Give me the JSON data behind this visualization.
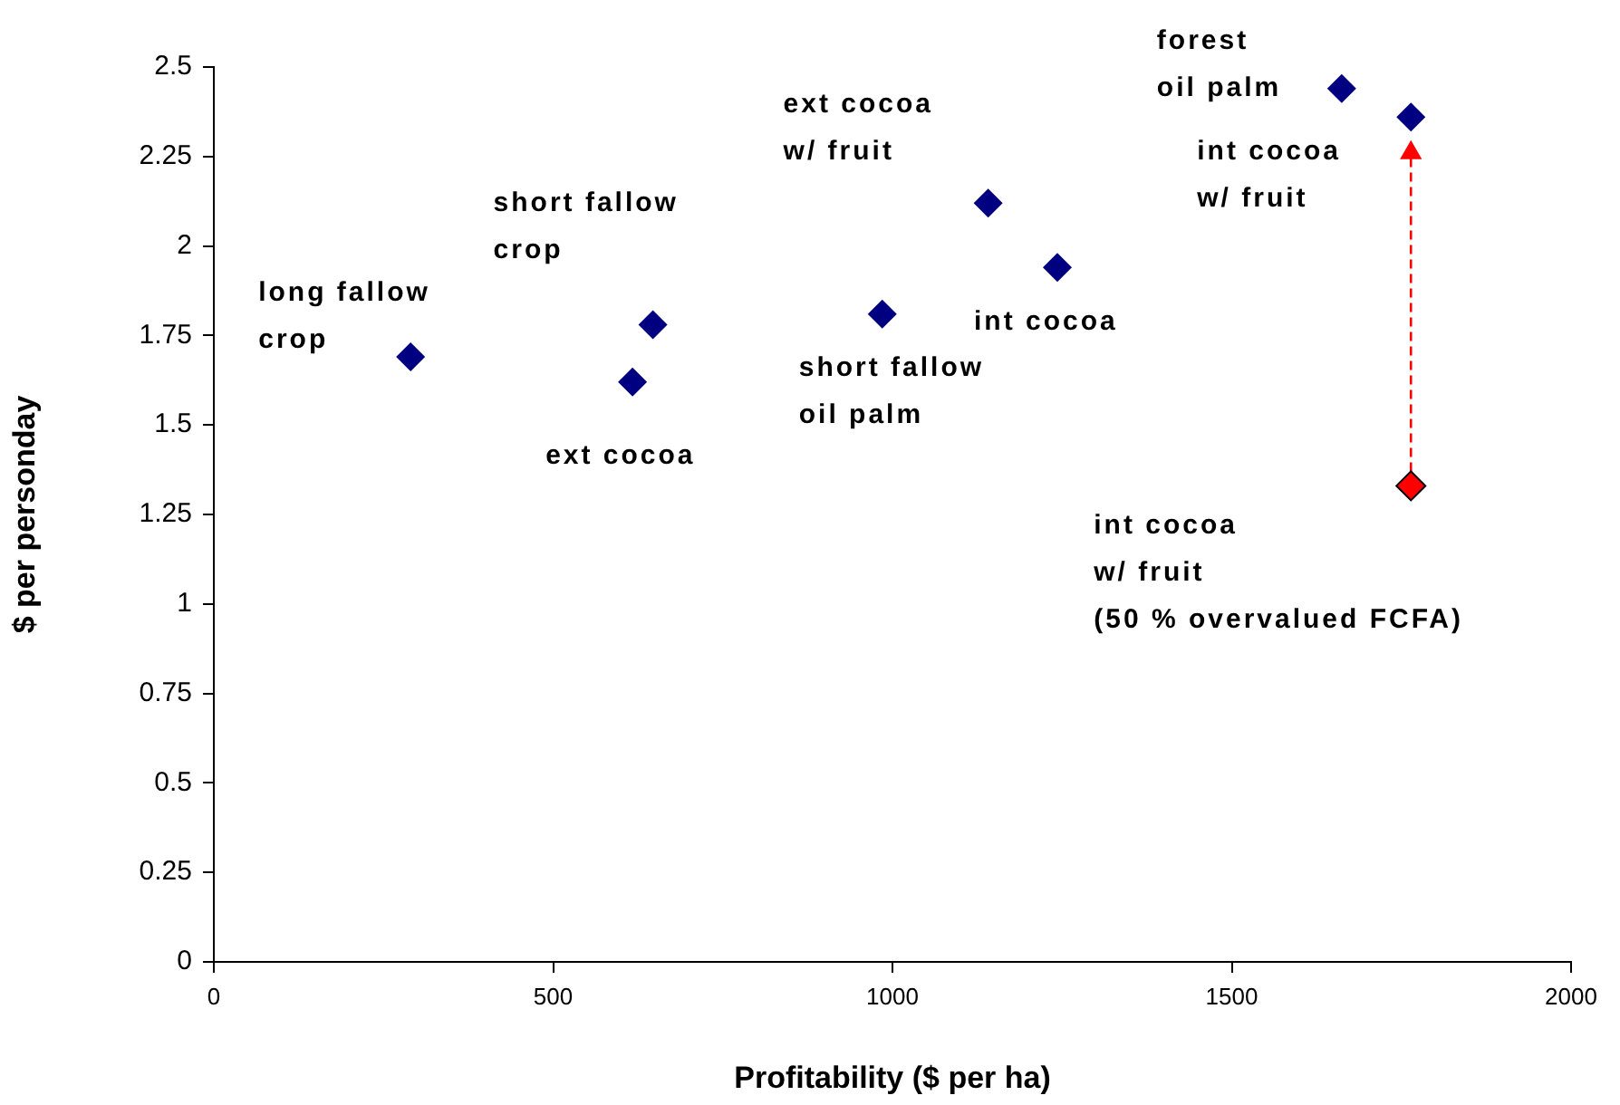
{
  "chart_data": {
    "type": "scatter",
    "xlabel": "Profitability ($ per ha)",
    "ylabel": "$ per personday",
    "xlim": [
      0,
      2000
    ],
    "xticks": [
      0,
      500,
      1000,
      1500,
      2000
    ],
    "ylim": [
      0,
      2.5
    ],
    "yticks": [
      0,
      0.25,
      0.5,
      0.75,
      1,
      1.25,
      1.5,
      1.75,
      2,
      2.25,
      2.5
    ],
    "grid": false,
    "legend": false,
    "marker": "diamond",
    "series": [
      {
        "color": "#000080",
        "x": [
          290,
          617,
          647,
          985,
          1141,
          1243,
          1662,
          1764
        ],
        "values": [
          1.69,
          1.62,
          1.78,
          1.81,
          2.12,
          1.94,
          2.44,
          2.36
        ]
      },
      {
        "type": "line",
        "color": "#ff0000",
        "marker": "triangle",
        "line_style": "dashed",
        "x": [
          1764,
          1764
        ],
        "values": [
          1.33,
          2.26
        ]
      },
      {
        "color": "#ff0000",
        "x": [
          1764
        ],
        "values": [
          1.33
        ]
      }
    ],
    "annotations": [
      {
        "text": "long fallow\ncrop",
        "x": 290,
        "y": 1.69
      },
      {
        "text": "ext cocoa",
        "x": 617,
        "y": 1.62
      },
      {
        "text": "short fallow\ncrop",
        "x": 647,
        "y": 1.78
      },
      {
        "text": "short fallow\noil palm",
        "x": 985,
        "y": 1.81
      },
      {
        "text": "ext cocoa\nw/ fruit",
        "x": 1141,
        "y": 2.12
      },
      {
        "text": "int cocoa",
        "x": 1243,
        "y": 1.94
      },
      {
        "text": "forest\noil palm",
        "x": 1662,
        "y": 2.44
      },
      {
        "text": "int cocoa\nw/ fruit",
        "x": 1764,
        "y": 2.36
      },
      {
        "text": "int cocoa\nw/ fruit\n(50 % overvalued FCFA)",
        "x": 1764,
        "y": 1.33
      }
    ]
  }
}
